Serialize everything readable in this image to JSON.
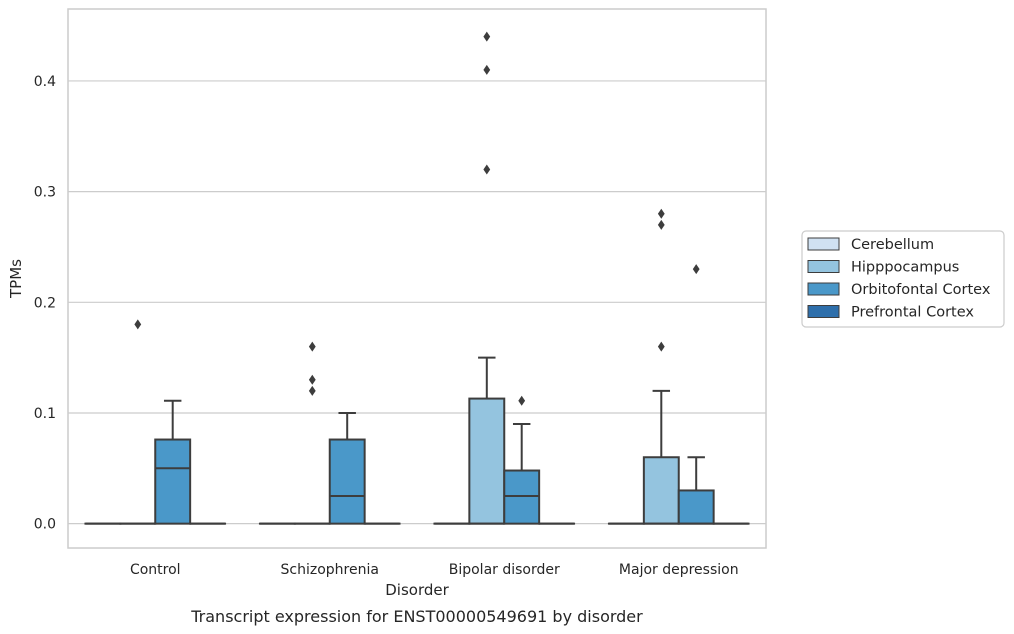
{
  "chart_data": {
    "type": "box",
    "xlabel": "Disorder",
    "ylabel": "TPMs",
    "caption": "Transcript expression for ENST00000549691 by disorder",
    "categories": [
      "Control",
      "Schizophrenia",
      "Bipolar disorder",
      "Major depression"
    ],
    "ylim": [
      -0.022,
      0.465
    ],
    "yticks": [
      0.0,
      0.1,
      0.2,
      0.3,
      0.4
    ],
    "ytick_labels": [
      "0.0",
      "0.1",
      "0.2",
      "0.3",
      "0.4"
    ],
    "grid": "horizontal",
    "legend_position": "right",
    "series": [
      {
        "name": "Cerebellum",
        "color": "#d0e1f2",
        "boxes": [
          {
            "q1": 0,
            "median": 0,
            "q3": 0,
            "whisker_low": 0,
            "whisker_high": 0,
            "outliers": []
          },
          {
            "q1": 0,
            "median": 0,
            "q3": 0,
            "whisker_low": 0,
            "whisker_high": 0,
            "outliers": []
          },
          {
            "q1": 0,
            "median": 0,
            "q3": 0,
            "whisker_low": 0,
            "whisker_high": 0,
            "outliers": []
          },
          {
            "q1": 0,
            "median": 0,
            "q3": 0,
            "whisker_low": 0,
            "whisker_high": 0,
            "outliers": []
          }
        ]
      },
      {
        "name": "Hipppocampus",
        "color": "#94c4df",
        "boxes": [
          {
            "q1": 0,
            "median": 0,
            "q3": 0,
            "whisker_low": 0,
            "whisker_high": 0,
            "outliers": [
              0.18
            ]
          },
          {
            "q1": 0,
            "median": 0,
            "q3": 0,
            "whisker_low": 0,
            "whisker_high": 0,
            "outliers": [
              0.12,
              0.13,
              0.16
            ]
          },
          {
            "q1": 0,
            "median": 0,
            "q3": 0.113,
            "whisker_low": 0,
            "whisker_high": 0.15,
            "outliers": [
              0.32,
              0.41,
              0.44
            ]
          },
          {
            "q1": 0,
            "median": 0,
            "q3": 0.06,
            "whisker_low": 0,
            "whisker_high": 0.12,
            "outliers": [
              0.16,
              0.27,
              0.28
            ]
          }
        ]
      },
      {
        "name": "Orbitofontal Cortex",
        "color": "#4a98c9",
        "boxes": [
          {
            "q1": 0,
            "median": 0.05,
            "q3": 0.076,
            "whisker_low": 0,
            "whisker_high": 0.111,
            "outliers": []
          },
          {
            "q1": 0,
            "median": 0.025,
            "q3": 0.076,
            "whisker_low": 0,
            "whisker_high": 0.1,
            "outliers": []
          },
          {
            "q1": 0,
            "median": 0.025,
            "q3": 0.048,
            "whisker_low": 0,
            "whisker_high": 0.09,
            "outliers": [
              0.111
            ]
          },
          {
            "q1": 0,
            "median": 0,
            "q3": 0.03,
            "whisker_low": 0,
            "whisker_high": 0.06,
            "outliers": [
              0.23
            ]
          }
        ]
      },
      {
        "name": "Prefrontal Cortex",
        "color": "#2e6fab",
        "boxes": [
          {
            "q1": 0,
            "median": 0,
            "q3": 0,
            "whisker_low": 0,
            "whisker_high": 0,
            "outliers": []
          },
          {
            "q1": 0,
            "median": 0,
            "q3": 0,
            "whisker_low": 0,
            "whisker_high": 0,
            "outliers": []
          },
          {
            "q1": 0,
            "median": 0,
            "q3": 0,
            "whisker_low": 0,
            "whisker_high": 0,
            "outliers": []
          },
          {
            "q1": 0,
            "median": 0,
            "q3": 0,
            "whisker_low": 0,
            "whisker_high": 0,
            "outliers": []
          }
        ]
      }
    ]
  }
}
